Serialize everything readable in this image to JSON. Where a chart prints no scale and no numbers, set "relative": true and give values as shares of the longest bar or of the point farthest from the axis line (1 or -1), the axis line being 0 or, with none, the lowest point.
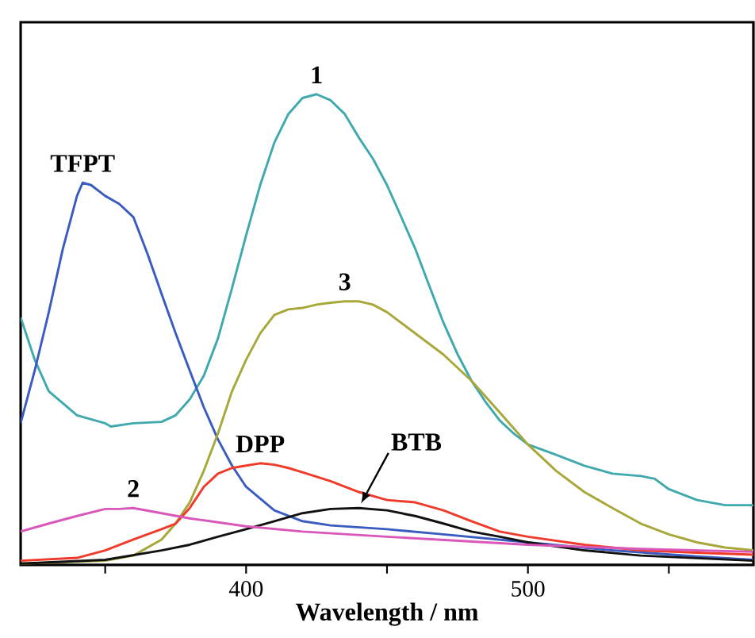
{
  "chart_data": {
    "type": "line",
    "xlabel": "Wavelength / nm",
    "relative": true,
    "xlim": [
      320,
      580
    ],
    "xticks": [
      {
        "value": 350,
        "label": null
      },
      400,
      {
        "value": 450,
        "label": null
      },
      500,
      {
        "value": 550,
        "label": null
      }
    ],
    "series": [
      {
        "name": "1",
        "color": "#3fa9ad",
        "x": [
          320,
          325,
          330,
          340,
          350,
          352,
          360,
          370,
          375,
          380,
          385,
          390,
          395,
          400,
          405,
          410,
          415,
          420,
          425,
          430,
          435,
          440,
          445,
          450,
          455,
          460,
          465,
          470,
          475,
          480,
          485,
          490,
          495,
          500,
          510,
          520,
          530,
          540,
          545,
          550,
          560,
          570,
          580
        ],
        "values": [
          0.526,
          0.436,
          0.369,
          0.318,
          0.301,
          0.294,
          0.301,
          0.304,
          0.318,
          0.352,
          0.402,
          0.481,
          0.588,
          0.7,
          0.807,
          0.897,
          0.958,
          0.992,
          1.0,
          0.987,
          0.958,
          0.908,
          0.863,
          0.807,
          0.74,
          0.672,
          0.593,
          0.515,
          0.448,
          0.391,
          0.346,
          0.307,
          0.279,
          0.256,
          0.234,
          0.211,
          0.194,
          0.189,
          0.183,
          0.161,
          0.138,
          0.127,
          0.127
        ]
      },
      {
        "name": "TFPT",
        "color": "#3a5bbf",
        "x": [
          320,
          325,
          330,
          335,
          340,
          342,
          345,
          350,
          355,
          360,
          365,
          370,
          375,
          380,
          385,
          390,
          395,
          400,
          410,
          420,
          430,
          450,
          470,
          500,
          530,
          560,
          580
        ],
        "values": [
          0.301,
          0.413,
          0.537,
          0.672,
          0.784,
          0.812,
          0.807,
          0.784,
          0.767,
          0.739,
          0.661,
          0.576,
          0.492,
          0.413,
          0.335,
          0.267,
          0.211,
          0.166,
          0.116,
          0.093,
          0.084,
          0.076,
          0.065,
          0.048,
          0.031,
          0.018,
          0.011
        ]
      },
      {
        "name": "3",
        "color": "#a8a83a",
        "x": [
          320,
          350,
          360,
          370,
          375,
          380,
          385,
          390,
          395,
          400,
          405,
          410,
          415,
          420,
          425,
          430,
          435,
          440,
          445,
          450,
          460,
          470,
          480,
          490,
          500,
          510,
          520,
          530,
          540,
          550,
          560,
          570,
          580
        ],
        "values": [
          0.003,
          0.009,
          0.02,
          0.054,
          0.088,
          0.133,
          0.2,
          0.279,
          0.369,
          0.436,
          0.492,
          0.531,
          0.543,
          0.546,
          0.553,
          0.557,
          0.56,
          0.56,
          0.553,
          0.537,
          0.492,
          0.447,
          0.391,
          0.324,
          0.256,
          0.2,
          0.155,
          0.121,
          0.088,
          0.065,
          0.048,
          0.037,
          0.031
        ]
      },
      {
        "name": "DPP",
        "color": "#f03a2a",
        "x": [
          320,
          340,
          350,
          360,
          370,
          375,
          380,
          385,
          390,
          395,
          400,
          405,
          410,
          415,
          420,
          430,
          440,
          450,
          460,
          470,
          480,
          490,
          500,
          520,
          540,
          560,
          580
        ],
        "values": [
          0.009,
          0.015,
          0.031,
          0.054,
          0.076,
          0.088,
          0.121,
          0.166,
          0.194,
          0.206,
          0.211,
          0.216,
          0.213,
          0.206,
          0.197,
          0.178,
          0.155,
          0.138,
          0.133,
          0.116,
          0.093,
          0.071,
          0.06,
          0.043,
          0.031,
          0.026,
          0.022
        ]
      },
      {
        "name": "BTB",
        "color": "#111111",
        "x": [
          320,
          350,
          370,
          380,
          390,
          400,
          410,
          420,
          430,
          440,
          450,
          460,
          470,
          480,
          490,
          500,
          520,
          540,
          580
        ],
        "values": [
          0.003,
          0.011,
          0.031,
          0.043,
          0.06,
          0.076,
          0.093,
          0.11,
          0.119,
          0.121,
          0.116,
          0.104,
          0.088,
          0.071,
          0.06,
          0.048,
          0.031,
          0.02,
          0.009
        ]
      },
      {
        "name": "2",
        "color": "#d957b8",
        "x": [
          320,
          330,
          340,
          350,
          355,
          360,
          370,
          380,
          400,
          420,
          450,
          500,
          540,
          580
        ],
        "values": [
          0.071,
          0.088,
          0.104,
          0.119,
          0.119,
          0.121,
          0.11,
          0.099,
          0.082,
          0.071,
          0.06,
          0.043,
          0.034,
          0.028
        ]
      }
    ]
  }
}
